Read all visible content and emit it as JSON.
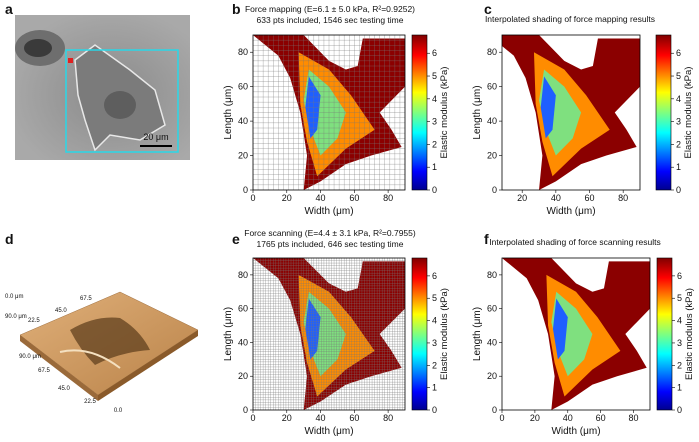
{
  "panels": [
    {
      "letter": "a",
      "scale_bar": "20 μm"
    },
    {
      "letter": "b",
      "title": "Force mapping (E=6.1 ± 5.0 kPa, R²=0.9252)",
      "subtitle": "633 pts included, 1546 sec testing time",
      "xlabel": "Width (μm)",
      "ylabel": "Length (μm)",
      "xlim": [
        0,
        90
      ],
      "ylim": [
        0,
        90
      ],
      "xticks": [
        0,
        20,
        40,
        60,
        80
      ],
      "yticks": [
        0,
        20,
        40,
        60,
        80
      ],
      "colorbar_label": "Elastic modulus (kPa)",
      "clim": [
        0,
        6.8
      ],
      "cticks": [
        0,
        1,
        2,
        3,
        4,
        5,
        6
      ],
      "grid": true
    },
    {
      "letter": "c",
      "title": "Interpolated shading of force mapping results",
      "xlabel": "Width (μm)",
      "ylabel": "Length (μm)",
      "xlim": [
        8,
        90
      ],
      "ylim": [
        0,
        90
      ],
      "xticks": [
        20,
        40,
        60,
        80
      ],
      "yticks": [
        0,
        20,
        40,
        60,
        80
      ],
      "colorbar_label": "Elastic modulus (kPa)",
      "clim": [
        0,
        6.8
      ],
      "cticks": [
        0,
        1,
        2,
        3,
        4,
        5,
        6
      ],
      "grid": false
    },
    {
      "letter": "d",
      "axis_labels": [
        "0.0 μm",
        "90.0 μm",
        "22.5",
        "45.0",
        "67.5",
        "0.0",
        "22.5",
        "45.0",
        "67.5",
        "90.0 μm"
      ]
    },
    {
      "letter": "e",
      "title": "Force scanning (E=4.4 ± 3.1 kPa, R²=0.7955)",
      "subtitle": "1765 pts included, 646 sec testing time",
      "xlabel": "Width (μm)",
      "ylabel": "Length (μm)",
      "xlim": [
        0,
        90
      ],
      "ylim": [
        0,
        90
      ],
      "xticks": [
        0,
        20,
        40,
        60,
        80
      ],
      "yticks": [
        0,
        20,
        40,
        60,
        80
      ],
      "colorbar_label": "Elastic modulus (kPa)",
      "clim": [
        0,
        6.8
      ],
      "cticks": [
        0,
        1,
        2,
        3,
        4,
        5,
        6
      ],
      "grid": true
    },
    {
      "letter": "f",
      "title": "Interpolated shading of force scanning results",
      "xlabel": "Width (μm)",
      "ylabel": "Length (μm)",
      "xlim": [
        0,
        90
      ],
      "ylim": [
        0,
        90
      ],
      "xticks": [
        0,
        20,
        40,
        60,
        80
      ],
      "yticks": [
        0,
        20,
        40,
        60,
        80
      ],
      "colorbar_label": "Elastic modulus (kPa)",
      "clim": [
        0,
        6.8
      ],
      "cticks": [
        0,
        1,
        2,
        3,
        4,
        5,
        6
      ],
      "grid": false
    }
  ]
}
